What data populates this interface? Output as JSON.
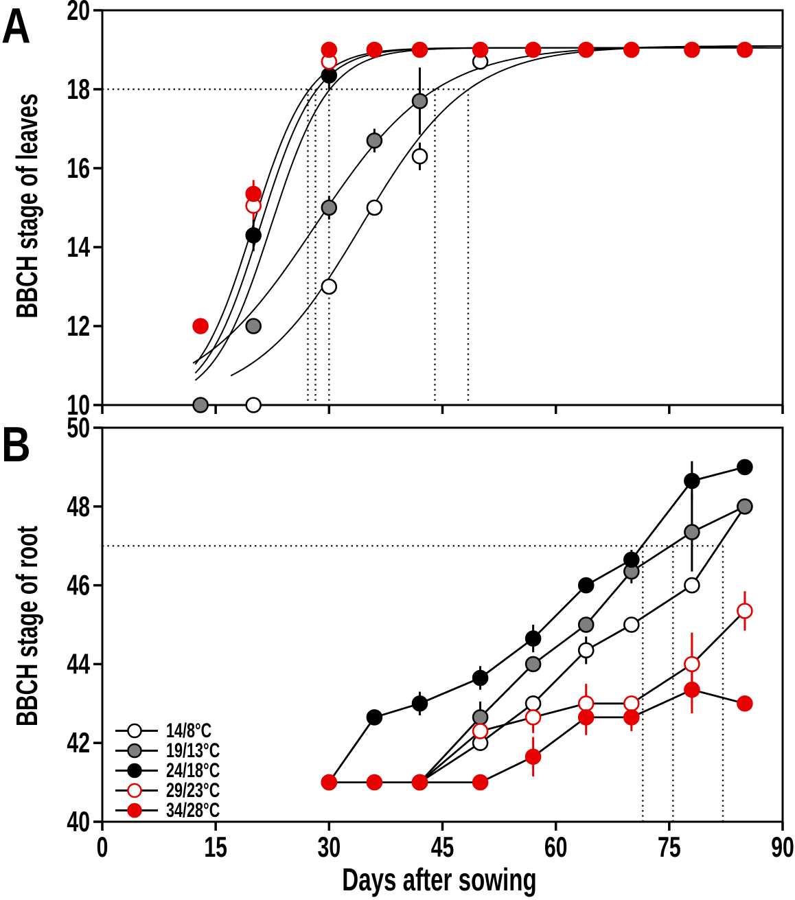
{
  "labels": {
    "panel_a": "A",
    "panel_b": "B",
    "x_axis_title": "Days after sowing",
    "y_axis_title_a": "BBCH stage of leaves",
    "y_axis_title_b": "BBCH stage of root"
  },
  "legend": {
    "items": [
      {
        "label": "14/8°C",
        "marker": "open-circle",
        "fill": "#ffffff",
        "stroke": "#000000"
      },
      {
        "label": "19/13°C",
        "marker": "gray-filled-circle",
        "fill": "#7f7f7f",
        "stroke": "#000000"
      },
      {
        "label": "24/18°C",
        "marker": "black-filled-circle",
        "fill": "#000000",
        "stroke": "#000000"
      },
      {
        "label": "29/23°C",
        "marker": "red-open-circle",
        "fill": "#ffffff",
        "stroke": "#e60000"
      },
      {
        "label": "34/28°C",
        "marker": "red-filled-circle",
        "fill": "#e60000",
        "stroke": "#e60000"
      }
    ]
  },
  "chart_data": [
    {
      "id": "panel_a",
      "type": "scatter",
      "title": "BBCH leaf development by temperature regime",
      "xlabel": "Days after sowing",
      "ylabel": "BBCH stage of leaves",
      "xlim": [
        0,
        90
      ],
      "ylim": [
        10,
        20
      ],
      "xticks": [
        0,
        15,
        30,
        45,
        60,
        75,
        90
      ],
      "yticks": [
        10,
        12,
        14,
        16,
        18,
        20
      ],
      "x": [
        13,
        20,
        30,
        36,
        42,
        50,
        57,
        64,
        70,
        78,
        85
      ],
      "connect_markers": false,
      "series": [
        {
          "name": "14/8°C",
          "values": [
            null,
            10,
            13,
            15,
            16.3,
            18.7,
            null,
            null,
            null,
            null,
            null
          ],
          "errors": [
            null,
            null,
            null,
            null,
            0.35,
            0.2,
            null,
            null,
            null,
            null,
            null
          ]
        },
        {
          "name": "19/13°C",
          "values": [
            10,
            12,
            15,
            16.7,
            17.7,
            null,
            null,
            null,
            null,
            null,
            null
          ],
          "errors": [
            null,
            null,
            0.3,
            0.3,
            0.85,
            null,
            null,
            null,
            null,
            null,
            null
          ]
        },
        {
          "name": "24/18°C",
          "values": [
            null,
            14.3,
            18.35,
            null,
            null,
            null,
            null,
            null,
            null,
            null,
            null
          ],
          "errors": [
            null,
            0.4,
            0.35,
            null,
            null,
            null,
            null,
            null,
            null,
            null,
            null
          ]
        },
        {
          "name": "29/23°C",
          "values": [
            null,
            15.05,
            18.7,
            null,
            null,
            null,
            null,
            null,
            null,
            null,
            null
          ],
          "errors": [
            null,
            0.35,
            0.2,
            null,
            null,
            null,
            null,
            null,
            null,
            null,
            null
          ]
        },
        {
          "name": "34/28°C",
          "values": [
            12,
            15.35,
            19,
            19,
            19,
            19,
            19,
            19,
            19,
            19,
            19
          ],
          "errors": [
            null,
            0.35,
            null,
            null,
            null,
            null,
            null,
            null,
            null,
            null,
            null
          ]
        }
      ],
      "fit_curves": [
        {
          "series": "14/8°C",
          "model": "logistic",
          "L": 10,
          "U": 19.1,
          "k": 0.14,
          "m": 34.3,
          "from": 17,
          "to": 90
        },
        {
          "series": "19/13°C",
          "model": "logistic",
          "L": 10,
          "U": 19.1,
          "k": 0.125,
          "m": 28.2,
          "from": 12,
          "to": 90
        },
        {
          "series": "24/18°C",
          "model": "logistic",
          "L": 10,
          "U": 19.05,
          "k": 0.26,
          "m": 22.3,
          "from": 12.3,
          "to": 90
        },
        {
          "series": "29/23°C",
          "model": "logistic",
          "L": 10,
          "U": 19.05,
          "k": 0.27,
          "m": 20.9,
          "from": 12.3,
          "to": 90
        },
        {
          "series": "34/28°C",
          "model": "logistic",
          "L": 10,
          "U": 19.05,
          "k": 0.27,
          "m": 19.9,
          "from": 12.3,
          "to": 90
        }
      ],
      "ref_lines": {
        "h": {
          "y": 18,
          "from": 0,
          "to": 48.4
        },
        "v": [
          27.2,
          28.2,
          30.0,
          44.0,
          48.4
        ]
      }
    },
    {
      "id": "panel_b",
      "type": "line",
      "title": "BBCH root development by temperature regime",
      "xlabel": "Days after sowing",
      "ylabel": "BBCH stage of root",
      "xlim": [
        0,
        90
      ],
      "ylim": [
        40,
        50
      ],
      "xticks": [
        0,
        15,
        30,
        45,
        60,
        75,
        90
      ],
      "yticks": [
        40,
        42,
        44,
        46,
        48,
        50
      ],
      "x": [
        13,
        20,
        30,
        36,
        42,
        50,
        57,
        64,
        70,
        78,
        85
      ],
      "connect_markers": true,
      "series": [
        {
          "name": "14/8°C",
          "values": [
            null,
            null,
            null,
            null,
            41,
            42,
            43,
            44.35,
            45,
            46,
            48
          ],
          "errors": [
            null,
            null,
            null,
            null,
            null,
            null,
            null,
            0.35,
            null,
            0.2,
            null
          ]
        },
        {
          "name": "19/13°C",
          "values": [
            null,
            null,
            null,
            null,
            41,
            42.65,
            44,
            45,
            46.35,
            47.35,
            48
          ],
          "errors": [
            null,
            null,
            null,
            null,
            null,
            0.4,
            null,
            null,
            0.3,
            1.0,
            null
          ]
        },
        {
          "name": "24/18°C",
          "values": [
            null,
            null,
            41,
            42.65,
            43,
            43.65,
            44.65,
            46,
            46.65,
            48.65,
            49
          ],
          "errors": [
            null,
            null,
            null,
            null,
            0.3,
            0.3,
            0.35,
            null,
            0.25,
            0.5,
            null
          ]
        },
        {
          "name": "29/23°C",
          "values": [
            null,
            null,
            null,
            null,
            41,
            42.3,
            42.65,
            43,
            43,
            44,
            45.35
          ],
          "errors": [
            null,
            null,
            null,
            null,
            null,
            0.45,
            0.4,
            0.5,
            null,
            0.8,
            0.5
          ]
        },
        {
          "name": "34/28°C",
          "values": [
            null,
            null,
            41,
            41,
            41,
            41,
            41.65,
            42.65,
            42.65,
            43.35,
            43
          ],
          "errors": [
            null,
            null,
            null,
            null,
            null,
            null,
            0.5,
            0.45,
            0.35,
            0.6,
            null
          ]
        }
      ],
      "fit_curves": [],
      "ref_lines": {
        "h": {
          "y": 47,
          "from": 0,
          "to": 82.1
        },
        "v": [
          71.5,
          75.5,
          82.1
        ]
      }
    }
  ]
}
